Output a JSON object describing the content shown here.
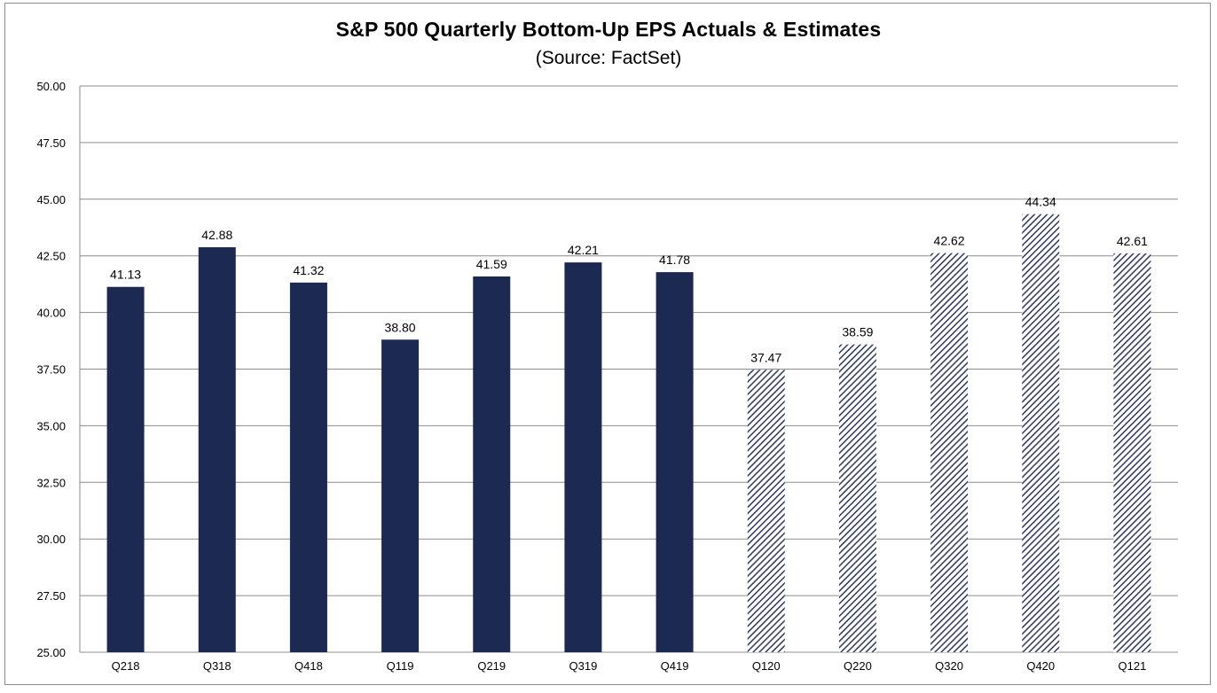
{
  "chart_data": {
    "type": "bar",
    "title": "S&P 500 Quarterly Bottom-Up EPS Actuals & Estimates",
    "subtitle": "(Source: FactSet)",
    "categories": [
      "Q218",
      "Q318",
      "Q418",
      "Q119",
      "Q219",
      "Q319",
      "Q419",
      "Q120",
      "Q220",
      "Q320",
      "Q420",
      "Q121"
    ],
    "values": [
      41.13,
      42.88,
      41.32,
      38.8,
      41.59,
      42.21,
      41.78,
      37.47,
      38.59,
      42.62,
      44.34,
      42.61
    ],
    "value_labels": [
      "41.13",
      "42.88",
      "41.32",
      "38.80",
      "41.59",
      "42.21",
      "41.78",
      "37.47",
      "38.59",
      "42.62",
      "44.34",
      "42.61"
    ],
    "kind": [
      "actual",
      "actual",
      "actual",
      "actual",
      "actual",
      "actual",
      "actual",
      "estimate",
      "estimate",
      "estimate",
      "estimate",
      "estimate"
    ],
    "ylim": [
      25,
      50
    ],
    "yticks": [
      "25.00",
      "27.50",
      "30.00",
      "32.50",
      "35.00",
      "37.50",
      "40.00",
      "42.50",
      "45.00",
      "47.50",
      "50.00"
    ],
    "grid": true,
    "colors": {
      "actual": "#1c2951",
      "estimate_hatch": "#2d3a5c",
      "grid": "#8c8c8c"
    }
  }
}
